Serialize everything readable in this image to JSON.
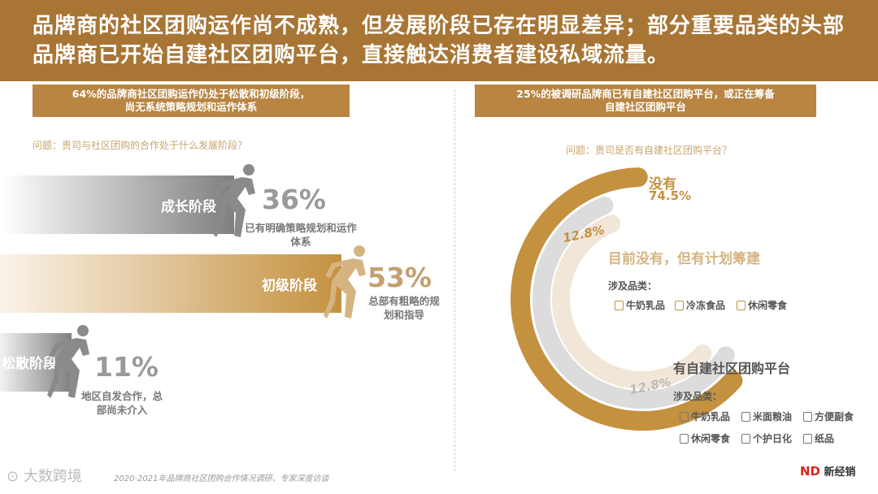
{
  "header": {
    "title": "品牌商的社区团购运作尚不成熟，但发展阶段已存在明显差异；部分重要品类的头部品牌商已开始自建社区团购平台，直接触达消费者建设私域流量。"
  },
  "left": {
    "banner": [
      "64%的品牌商社区团购运作仍处于松散和初级阶段，",
      "尚无系统策略规划和运作体系"
    ],
    "question": "问题：贵司与社区团购的合作处于什么发展阶段？"
  },
  "right": {
    "banner": [
      "25%的被调研品牌商已有自建社区团购平台，或正在筹备",
      "自建社区团购平台"
    ],
    "question": "问题：贵司是否有自建社区团购平台？",
    "no_label": "没有",
    "plan_title": "目前没有，但有计划筹建",
    "plan_cat_title": "涉及品类：",
    "plan_cats": [
      "牛奶乳品",
      "冷冻食品",
      "休闲零食"
    ],
    "own_title": "有自建社区团购平台",
    "own_cat_title": "涉及品类：",
    "own_cats": [
      "牛奶乳品",
      "米面粮油",
      "方便副食",
      "休闲零食",
      "个护日化",
      "纸品"
    ]
  },
  "chart_data": [
    {
      "type": "bar",
      "orientation": "horizontal",
      "categories": [
        "成长阶段",
        "初级阶段",
        "松散阶段"
      ],
      "values": [
        36,
        53,
        11
      ],
      "value_labels": [
        "36%",
        "53%",
        "11%"
      ],
      "notes": [
        "已有明确策略规划和运作体系",
        "总部有粗略的规划和指导",
        "地区自发合作，总部尚未介入"
      ],
      "colors": [
        "#8c8c8c",
        "#c4913f",
        "#8c8c8c"
      ]
    },
    {
      "type": "pie",
      "style": "concentric-arcs",
      "categories": [
        "没有",
        "目前没有，但有计划筹建",
        "有自建社区团购平台"
      ],
      "values": [
        74.5,
        12.8,
        12.8
      ],
      "value_labels": [
        "74.5%",
        "12.8%",
        "12.8%"
      ],
      "colors": [
        "#c4913f",
        "#dcdcdc",
        "#f1e6d8"
      ]
    }
  ],
  "footer": {
    "source": "2020-2021年品牌商社区团购合作情况调研、专家深度访谈",
    "watermark": "大数跨境",
    "brand": "新经销"
  }
}
